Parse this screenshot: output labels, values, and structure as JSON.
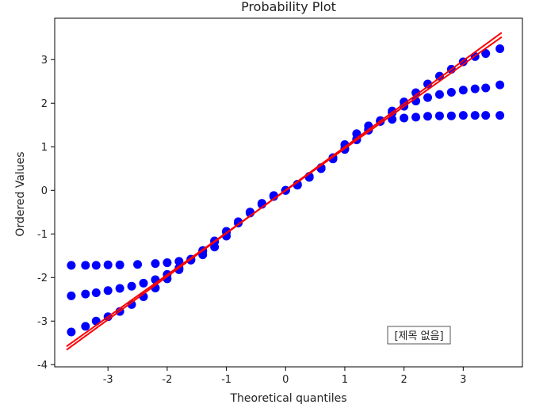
{
  "chart_data": {
    "type": "scatter",
    "title": "Probability Plot",
    "xlabel": "Theoretical quantiles",
    "ylabel": "Ordered Values",
    "xlim": [
      -3.9,
      4.0
    ],
    "ylim": [
      -4.05,
      3.95
    ],
    "xticks": [
      -3,
      -2,
      -1,
      0,
      1,
      2,
      3
    ],
    "yticks": [
      -4,
      -3,
      -2,
      -1,
      0,
      1,
      2,
      3
    ],
    "grid": false,
    "annotation": "[제목 없음]",
    "colors": {
      "points": "#0000ff",
      "fit_line": "#ff0000"
    },
    "series": [
      {
        "x": [
          -3.62,
          -3.38,
          -3.2,
          -3.0,
          -2.8,
          -2.5,
          -2.2,
          -2.0,
          -1.8,
          -1.6,
          -1.4,
          -1.2,
          -1.0,
          -0.8,
          -0.6,
          -0.4,
          -0.2,
          0.0,
          0.2,
          0.4,
          0.6,
          0.8,
          1.0,
          1.2,
          1.4,
          1.6,
          1.8,
          2.0,
          2.2,
          2.4,
          2.6,
          2.8,
          3.0,
          3.2,
          3.38,
          3.62
        ],
        "values": [
          -1.72,
          -1.72,
          -1.72,
          -1.71,
          -1.71,
          -1.7,
          -1.68,
          -1.66,
          -1.63,
          -1.58,
          -1.48,
          -1.3,
          -1.05,
          -0.75,
          -0.5,
          -0.3,
          -0.12,
          0.0,
          0.12,
          0.3,
          0.5,
          0.75,
          1.05,
          1.3,
          1.48,
          1.58,
          1.63,
          1.66,
          1.68,
          1.7,
          1.71,
          1.71,
          1.72,
          1.72,
          1.72,
          1.72
        ]
      },
      {
        "x": [
          -3.62,
          -3.38,
          -3.2,
          -3.0,
          -2.8,
          -2.6,
          -2.4,
          -2.2,
          -2.0,
          -1.8,
          -1.6,
          -1.4,
          -1.2,
          -1.0,
          -0.8,
          -0.6,
          -0.4,
          -0.2,
          0.0,
          0.2,
          0.4,
          0.6,
          0.8,
          1.0,
          1.2,
          1.4,
          1.6,
          1.8,
          2.0,
          2.2,
          2.4,
          2.6,
          2.8,
          3.0,
          3.2,
          3.38,
          3.62
        ],
        "values": [
          -2.42,
          -2.38,
          -2.35,
          -2.3,
          -2.25,
          -2.2,
          -2.13,
          -2.05,
          -1.93,
          -1.78,
          -1.6,
          -1.4,
          -1.18,
          -0.96,
          -0.74,
          -0.52,
          -0.32,
          -0.14,
          0.0,
          0.14,
          0.32,
          0.52,
          0.74,
          0.96,
          1.18,
          1.4,
          1.6,
          1.78,
          1.93,
          2.05,
          2.13,
          2.2,
          2.25,
          2.3,
          2.33,
          2.35,
          2.42
        ]
      },
      {
        "x": [
          -3.62,
          -3.38,
          -3.2,
          -3.0,
          -2.8,
          -2.6,
          -2.4,
          -2.2,
          -2.0,
          -1.8,
          -1.6,
          -1.4,
          -1.2,
          -1.0,
          -0.8,
          -0.6,
          -0.4,
          -0.2,
          0.0,
          0.2,
          0.4,
          0.6,
          0.8,
          1.0,
          1.2,
          1.4,
          1.6,
          1.8,
          2.0,
          2.2,
          2.4,
          2.6,
          2.8,
          3.0,
          3.2,
          3.38,
          3.62
        ],
        "values": [
          -3.25,
          -3.12,
          -3.0,
          -2.9,
          -2.78,
          -2.62,
          -2.44,
          -2.24,
          -2.03,
          -1.82,
          -1.6,
          -1.38,
          -1.16,
          -0.94,
          -0.72,
          -0.5,
          -0.3,
          -0.12,
          0.0,
          0.12,
          0.3,
          0.5,
          0.72,
          0.94,
          1.16,
          1.38,
          1.6,
          1.82,
          2.03,
          2.24,
          2.44,
          2.62,
          2.78,
          2.95,
          3.07,
          3.14,
          3.25
        ]
      }
    ],
    "fit_lines": [
      {
        "x": [
          -3.7,
          3.65
        ],
        "values": [
          -3.58,
          3.52
        ]
      },
      {
        "x": [
          -3.7,
          3.65
        ],
        "values": [
          -3.66,
          3.62
        ]
      }
    ]
  }
}
